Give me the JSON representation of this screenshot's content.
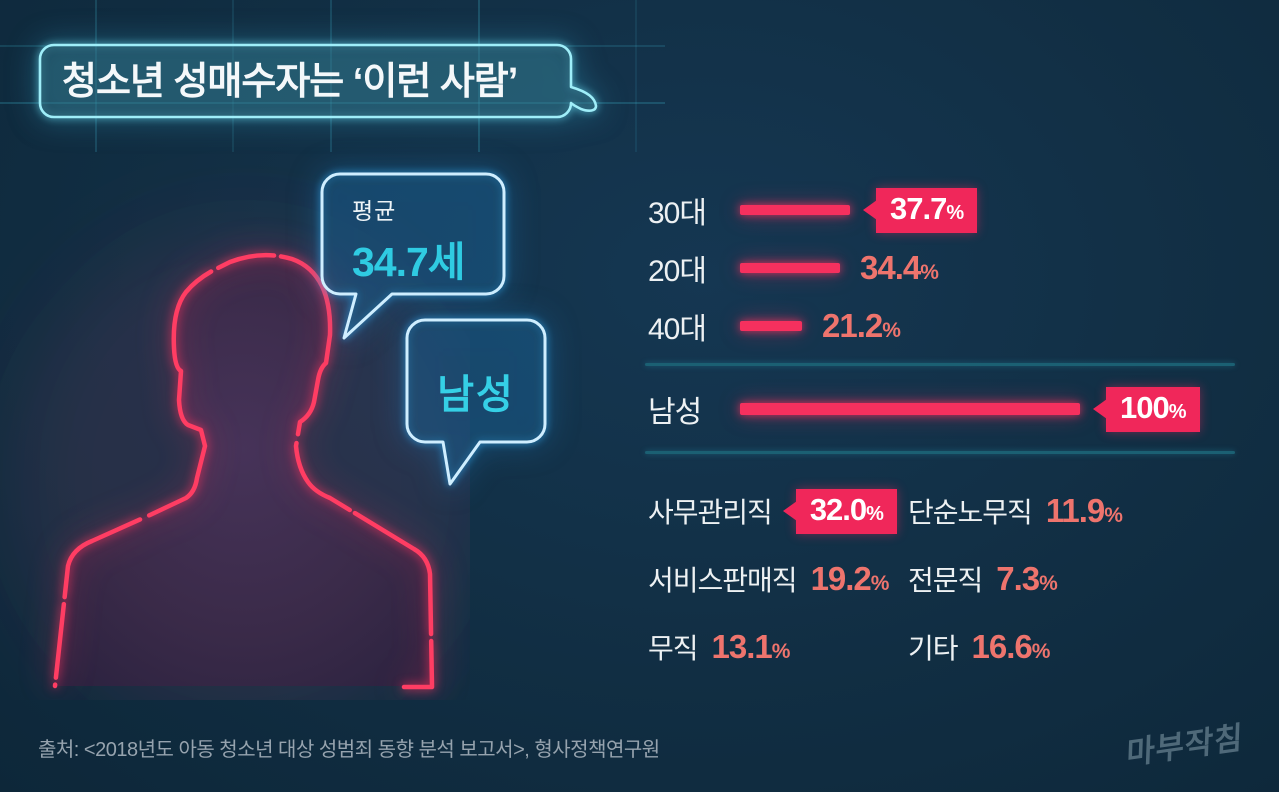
{
  "title": "청소년 성매수자는 ‘이런 사람’",
  "person": {
    "avg_label": "평균",
    "avg_value": "34.7세",
    "gender_value": "남성"
  },
  "chart_data": [
    {
      "type": "bar",
      "title": "연령대별 비율",
      "categories": [
        "30대",
        "20대",
        "40대"
      ],
      "values": [
        37.7,
        34.4,
        21.2
      ],
      "unit": "%",
      "highlighted_category": "30대",
      "orientation": "horizontal",
      "grid": false,
      "legend_position": "none",
      "bar_color": "#f5305e"
    },
    {
      "type": "bar",
      "title": "성별 비율",
      "categories": [
        "남성"
      ],
      "values": [
        100
      ],
      "unit": "%",
      "highlighted_category": "남성",
      "orientation": "horizontal",
      "grid": false,
      "legend_position": "none",
      "bar_color": "#f5305e"
    },
    {
      "type": "table",
      "title": "직업별 비율",
      "categories": [
        "사무관리직",
        "단순노무직",
        "서비스판매직",
        "전문직",
        "무직",
        "기타"
      ],
      "values": [
        32.0,
        11.9,
        19.2,
        7.3,
        13.1,
        16.6
      ],
      "unit": "%",
      "highlighted_category": "사무관리직"
    }
  ],
  "age_rows": [
    {
      "label": "30대",
      "value": "37.7",
      "pct": "%"
    },
    {
      "label": "20대",
      "value": "34.4",
      "pct": "%"
    },
    {
      "label": "40대",
      "value": "21.2",
      "pct": "%"
    }
  ],
  "gender_row": {
    "label": "남성",
    "value": "100",
    "pct": "%"
  },
  "job_items": [
    {
      "label": "사무관리직",
      "value": "32.0",
      "pct": "%"
    },
    {
      "label": "단순노무직",
      "value": "11.9",
      "pct": "%"
    },
    {
      "label": "서비스판매직",
      "value": "19.2",
      "pct": "%"
    },
    {
      "label": "전문직",
      "value": "7.3",
      "pct": "%"
    },
    {
      "label": "무직",
      "value": "13.1",
      "pct": "%"
    },
    {
      "label": "기타",
      "value": "16.6",
      "pct": "%"
    }
  ],
  "source": "출처: <2018년도 아동 청소년 대상 성범죄 동향 분석 보고서>, 형사정책연구원",
  "logo": "마부작침",
  "colors": {
    "background": "#112e43",
    "accent_pink": "#f5305e",
    "accent_salmon": "#ee746d",
    "accent_cyan": "#2fcbe2",
    "neon_blue": "#cfeeff",
    "neon_teal": "#9feef9",
    "divider_teal": "#1b6073",
    "text_white": "#edf1f3",
    "text_muted": "#96a3ae",
    "logo_gray": "#5b7584"
  }
}
